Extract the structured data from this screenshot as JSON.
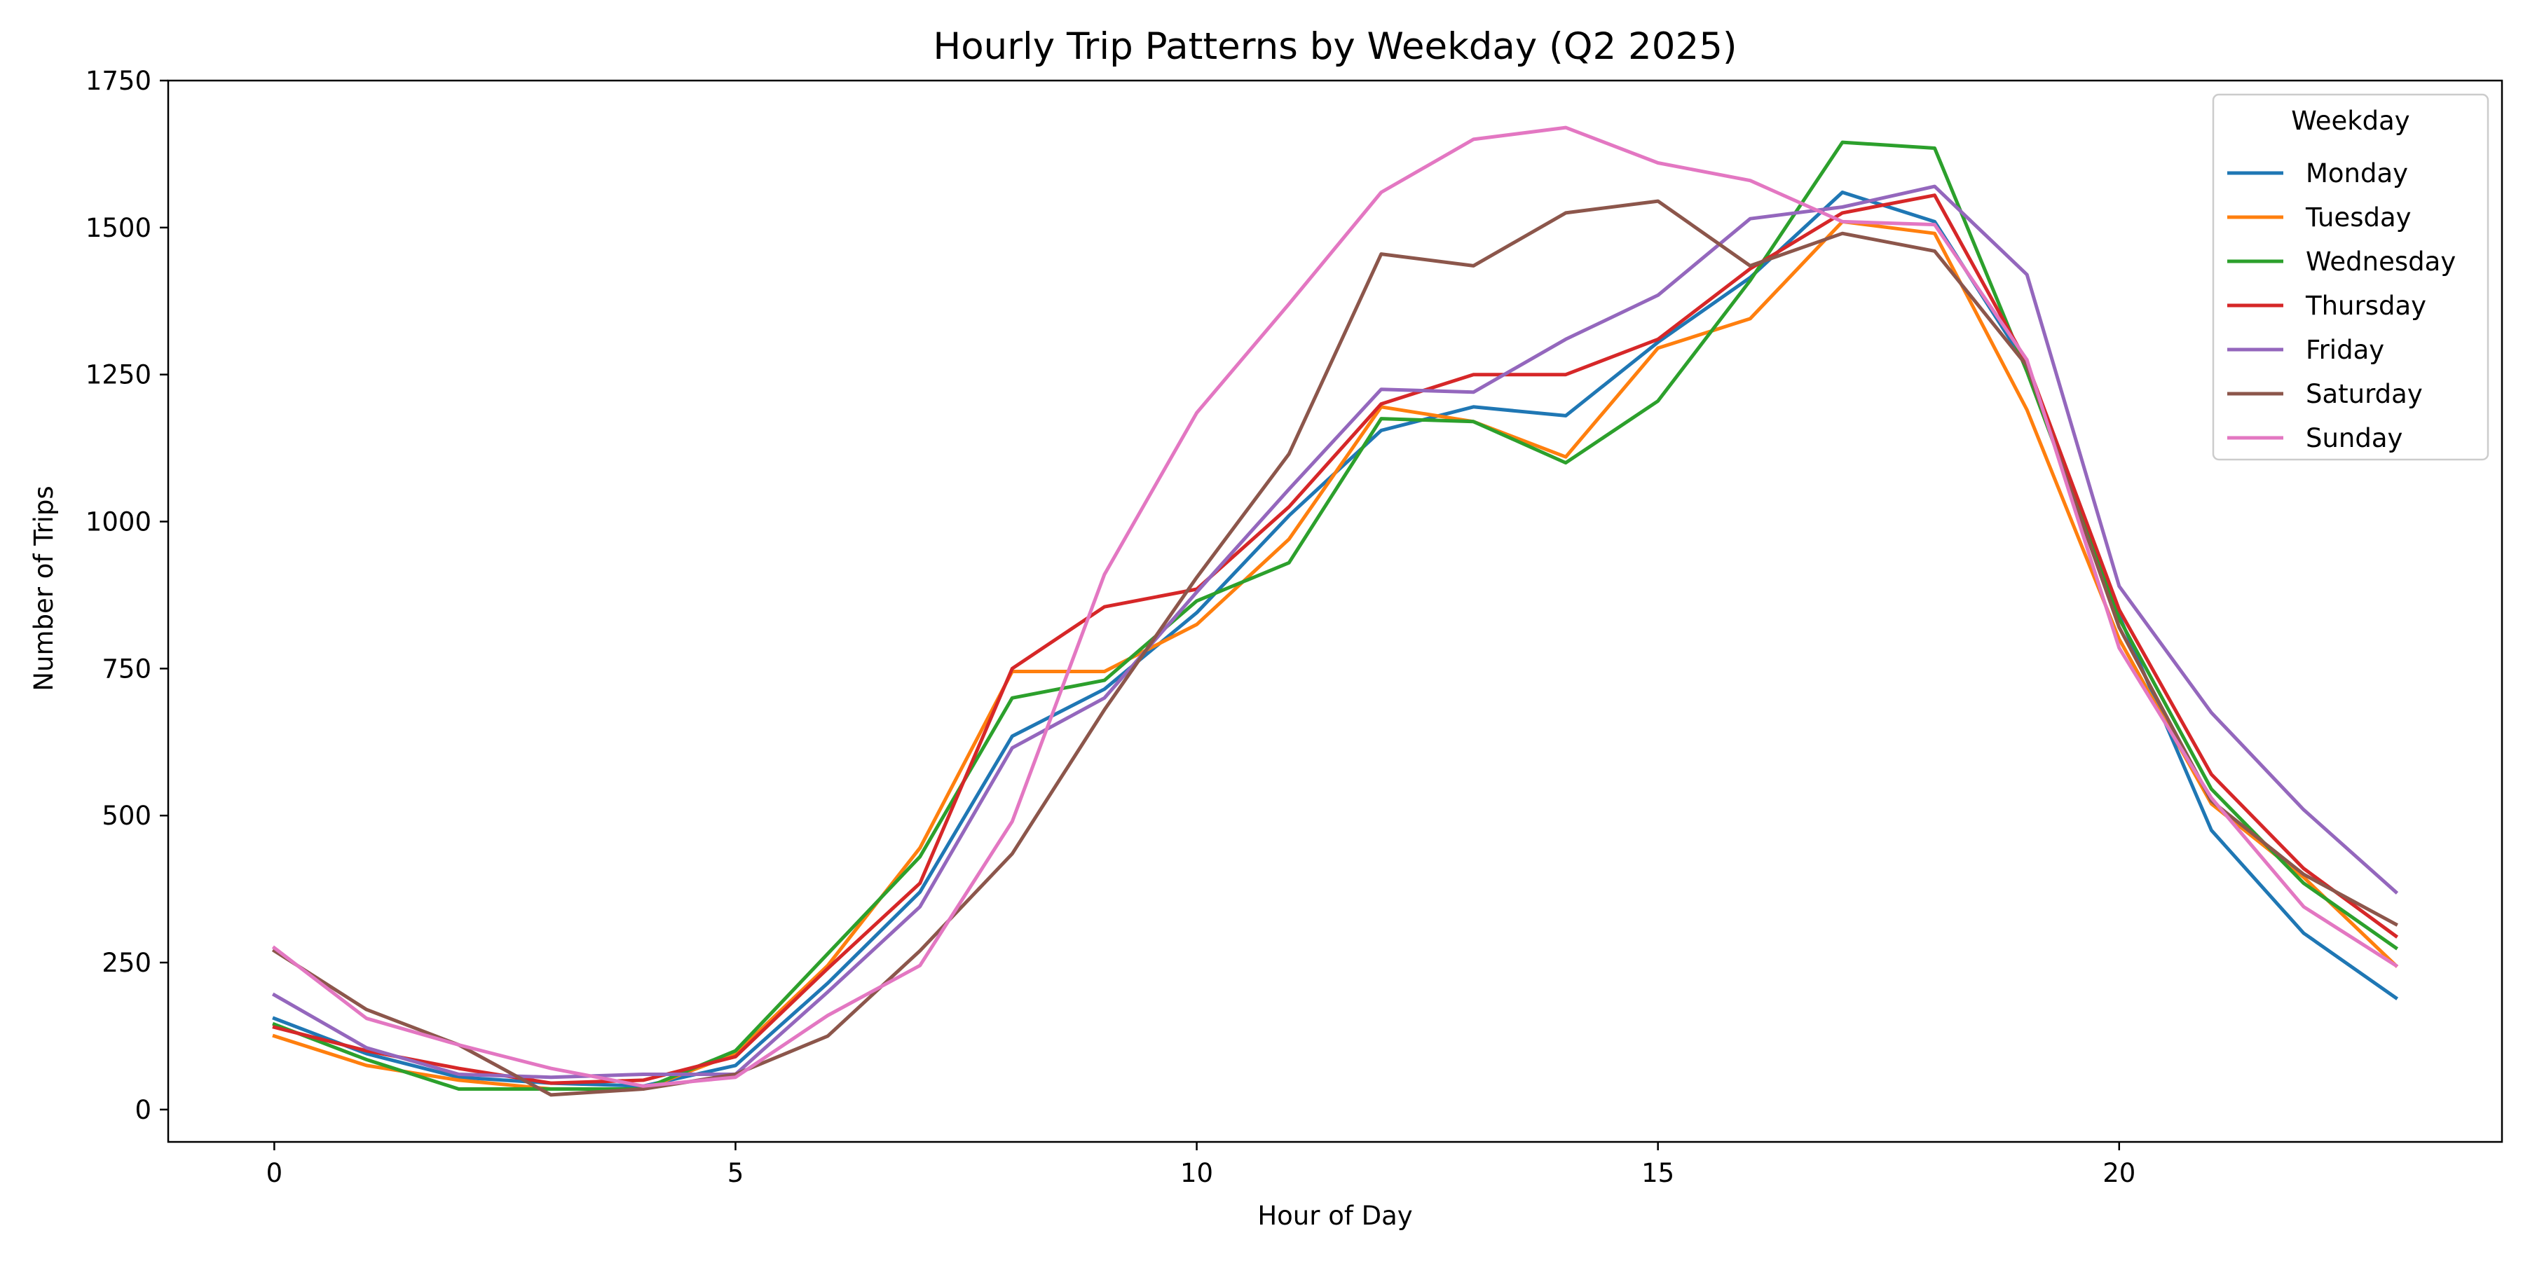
{
  "chart_data": {
    "type": "line",
    "title": "Hourly Trip Patterns by Weekday (Q2 2025)",
    "xlabel": "Hour of Day",
    "ylabel": "Number of Trips",
    "xlim": [
      -1.15,
      24.15
    ],
    "ylim": [
      -55,
      1750
    ],
    "x_ticks": [
      0,
      5,
      10,
      15,
      20
    ],
    "y_ticks": [
      0,
      250,
      500,
      750,
      1000,
      1250,
      1500,
      1750
    ],
    "grid": false,
    "legend": {
      "title": "Weekday",
      "placement": "top-right"
    },
    "x": [
      0,
      1,
      2,
      3,
      4,
      5,
      6,
      7,
      8,
      9,
      10,
      11,
      12,
      13,
      14,
      15,
      16,
      17,
      18,
      19,
      20,
      21,
      22,
      23
    ],
    "series": [
      {
        "name": "Monday",
        "color": "#1f77b4",
        "values": [
          155,
          95,
          55,
          45,
          40,
          75,
          215,
          370,
          635,
          715,
          845,
          1010,
          1155,
          1195,
          1180,
          1305,
          1415,
          1560,
          1510,
          1265,
          840,
          475,
          300,
          190
        ]
      },
      {
        "name": "Tuesday",
        "color": "#ff7f0e",
        "values": [
          125,
          75,
          50,
          35,
          35,
          95,
          245,
          445,
          745,
          745,
          825,
          970,
          1195,
          1170,
          1110,
          1295,
          1345,
          1510,
          1490,
          1190,
          800,
          520,
          395,
          245
        ]
      },
      {
        "name": "Wednesday",
        "color": "#2ca02c",
        "values": [
          145,
          85,
          35,
          35,
          35,
          100,
          265,
          430,
          700,
          730,
          865,
          930,
          1175,
          1170,
          1100,
          1205,
          1410,
          1645,
          1635,
          1255,
          835,
          545,
          385,
          275
        ]
      },
      {
        "name": "Thursday",
        "color": "#d62728",
        "values": [
          140,
          100,
          70,
          45,
          50,
          90,
          240,
          385,
          750,
          855,
          885,
          1025,
          1200,
          1250,
          1250,
          1310,
          1430,
          1525,
          1555,
          1270,
          850,
          570,
          410,
          295
        ]
      },
      {
        "name": "Friday",
        "color": "#9467bd",
        "values": [
          195,
          105,
          60,
          55,
          60,
          60,
          200,
          345,
          615,
          700,
          880,
          1055,
          1225,
          1220,
          1310,
          1385,
          1515,
          1535,
          1570,
          1420,
          890,
          675,
          510,
          370
        ]
      },
      {
        "name": "Saturday",
        "color": "#8c564b",
        "values": [
          270,
          170,
          110,
          25,
          35,
          60,
          125,
          270,
          435,
          680,
          905,
          1115,
          1455,
          1435,
          1525,
          1545,
          1435,
          1490,
          1460,
          1265,
          820,
          525,
          400,
          315
        ]
      },
      {
        "name": "Sunday",
        "color": "#e377c2",
        "values": [
          275,
          155,
          110,
          70,
          40,
          55,
          160,
          245,
          490,
          910,
          1185,
          1370,
          1560,
          1650,
          1670,
          1610,
          1580,
          1510,
          1505,
          1275,
          785,
          530,
          345,
          245
        ]
      }
    ]
  }
}
